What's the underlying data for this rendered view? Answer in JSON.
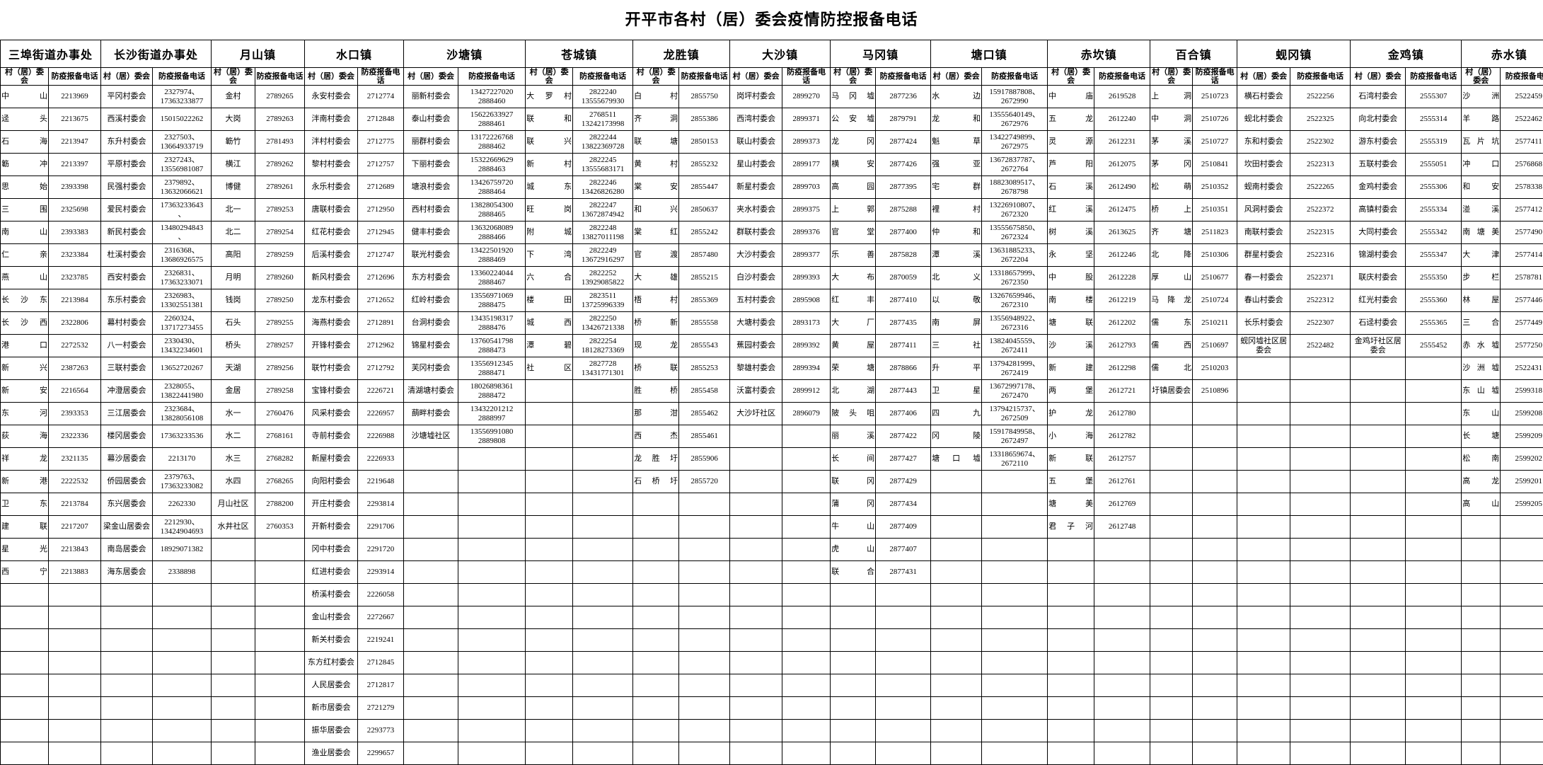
{
  "title": "开平市各村（居）委会疫情防控报备电话",
  "column_labels": {
    "name_label": "村（居）委会",
    "phone_label": "防疫报备电话"
  },
  "total_rows": 30,
  "groups": [
    {
      "name": "三埠街道办事处",
      "rows": [
        [
          "中山",
          "2213969"
        ],
        [
          "迳头",
          "2213675"
        ],
        [
          "石海",
          "2213947"
        ],
        [
          "簕冲",
          "2213397"
        ],
        [
          "思始",
          "2393398"
        ],
        [
          "三围",
          "2325698"
        ],
        [
          "南山",
          "2393383"
        ],
        [
          "仁亲",
          "2323384"
        ],
        [
          "燕山",
          "2323785"
        ],
        [
          "长沙东",
          "2213984"
        ],
        [
          "长沙西",
          "2322806"
        ],
        [
          "港口",
          "2272532"
        ],
        [
          "新兴",
          "2387263"
        ],
        [
          "新安",
          "2216564"
        ],
        [
          "东河",
          "2393353"
        ],
        [
          "荻海",
          "2322336"
        ],
        [
          "祥龙",
          "2321135"
        ],
        [
          "新港",
          "2222532"
        ],
        [
          "卫东",
          "2213784"
        ],
        [
          "建联",
          "2217207"
        ],
        [
          "星光",
          "2213843"
        ],
        [
          "西宁",
          "2213883"
        ]
      ]
    },
    {
      "name": "长沙街道办事处",
      "rows": [
        [
          "平冈村委会",
          "2327974、\n17363233877"
        ],
        [
          "西溪村委会",
          "15015022262"
        ],
        [
          "东升村委会",
          "2327503、\n13664933719"
        ],
        [
          "平原村委会",
          "2327243、\n13556981087"
        ],
        [
          "民强村委会",
          "2379892、\n13632066621"
        ],
        [
          "爱民村委会",
          "17363233643\n、"
        ],
        [
          "新民村委会",
          "13480294843\n、"
        ],
        [
          "杜溪村委会",
          "2316368、\n13686926575"
        ],
        [
          "西安村委会",
          "2326831、\n17363233071"
        ],
        [
          "东乐村委会",
          "2326983、\n13302551381"
        ],
        [
          "幕村村委会",
          "2260324、\n13717273455"
        ],
        [
          "八一村委会",
          "2330430、\n13432234601"
        ],
        [
          "三联村委会",
          "13652720267"
        ],
        [
          "冲澄居委会",
          "2328055、\n13822441980"
        ],
        [
          "三江居委会",
          "2323684、\n13828056108"
        ],
        [
          "楼冈居委会",
          "17363233536"
        ],
        [
          "幕沙居委会",
          "2213170"
        ],
        [
          "侨园居委会",
          "2379763、\n17363233082"
        ],
        [
          "东兴居委会",
          "2262330"
        ],
        [
          "梁金山居委会",
          "2212930、\n13424904693"
        ],
        [
          "南岛居委会",
          "18929071382"
        ],
        [
          "海东居委会",
          "2338898"
        ]
      ]
    },
    {
      "name": "月山镇",
      "rows": [
        [
          "金村",
          "2789265"
        ],
        [
          "大岗",
          "2789263"
        ],
        [
          "簕竹",
          "2781493"
        ],
        [
          "横江",
          "2789262"
        ],
        [
          "博健",
          "2789261"
        ],
        [
          "北一",
          "2789253"
        ],
        [
          "北二",
          "2789254"
        ],
        [
          "高阳",
          "2789259"
        ],
        [
          "月明",
          "2789260"
        ],
        [
          "钱岗",
          "2789250"
        ],
        [
          "石头",
          "2789255"
        ],
        [
          "桥头",
          "2789257"
        ],
        [
          "天湖",
          "2789256"
        ],
        [
          "金居",
          "2789258"
        ],
        [
          "水一",
          "2760476"
        ],
        [
          "水二",
          "2768161"
        ],
        [
          "水三",
          "2768282"
        ],
        [
          "水四",
          "2768265"
        ],
        [
          "月山社区",
          "2788200"
        ],
        [
          "水井社区",
          "2760353"
        ]
      ]
    },
    {
      "name": "水口镇",
      "rows": [
        [
          "永安村委会",
          "2712774"
        ],
        [
          "泮南村委会",
          "2712848"
        ],
        [
          "泮村村委会",
          "2712775"
        ],
        [
          "黎村村委会",
          "2712757"
        ],
        [
          "永乐村委会",
          "2712689"
        ],
        [
          "唐联村委会",
          "2712950"
        ],
        [
          "红花村委会",
          "2712945"
        ],
        [
          "后溪村委会",
          "2712747"
        ],
        [
          "新风村委会",
          "2712696"
        ],
        [
          "龙东村委会",
          "2712652"
        ],
        [
          "海燕村委会",
          "2712891"
        ],
        [
          "开锋村委会",
          "2712962"
        ],
        [
          "联竹村委会",
          "2712792"
        ],
        [
          "宝锋村委会",
          "2226721"
        ],
        [
          "风采村委会",
          "2226957"
        ],
        [
          "寺前村委会",
          "2226988"
        ],
        [
          "新屋村委会",
          "2226933"
        ],
        [
          "向阳村委会",
          "2219648"
        ],
        [
          "开庄村委会",
          "2293814"
        ],
        [
          "开新村委会",
          "2291706"
        ],
        [
          "冈中村委会",
          "2291720"
        ],
        [
          "红进村委会",
          "2293914"
        ],
        [
          "桥溪村委会",
          "2226058"
        ],
        [
          "金山村委会",
          "2272667"
        ],
        [
          "新关村委会",
          "2219241"
        ],
        [
          "东方红村委会",
          "2712845"
        ],
        [
          "人民居委会",
          "2712817"
        ],
        [
          "新市居委会",
          "2721279"
        ],
        [
          "振华居委会",
          "2293773"
        ],
        [
          "渔业居委会",
          "2299657"
        ]
      ]
    },
    {
      "name": "沙塘镇",
      "rows": [
        [
          "丽新村委会",
          "13427227020\n2888460"
        ],
        [
          "泰山村委会",
          "15622633927\n2888461"
        ],
        [
          "丽群村委会",
          "13172226768\n2888462"
        ],
        [
          "下丽村委会",
          "15322669629\n2888463"
        ],
        [
          "塘浪村委会",
          "13426759720\n2888464"
        ],
        [
          "西村村委会",
          "13828054300\n2888465"
        ],
        [
          "健丰村委会",
          "13632068089\n2888466"
        ],
        [
          "联光村委会",
          "13422501920\n2888469"
        ],
        [
          "东方村委会",
          "13360224044\n2888467"
        ],
        [
          "红岭村委会",
          "13556971069\n2888475"
        ],
        [
          "台洞村委会",
          "13435198317\n2888476"
        ],
        [
          "锦星村委会",
          "13760541798\n2888473"
        ],
        [
          "芙冈村委会",
          "13556912345\n2888471"
        ],
        [
          "清湖塘村委会",
          "18026898361\n2888472"
        ],
        [
          "蓢畔村委会",
          "13432201212\n2888997"
        ],
        [
          "沙塘墟社区",
          "13556991080\n2889808"
        ]
      ]
    },
    {
      "name": "苍城镇",
      "rows": [
        [
          "大罗村",
          "2822240\n13555679930"
        ],
        [
          "联和",
          "2768511\n13242173998"
        ],
        [
          "联兴",
          "2822244\n13822369728"
        ],
        [
          "新村",
          "2822245\n13555683171"
        ],
        [
          "城东",
          "2822246\n13426826280"
        ],
        [
          "旺岗",
          "2822247\n13672874942"
        ],
        [
          "附城",
          "2822248\n13827011198"
        ],
        [
          "下湾",
          "2822249\n13672916297"
        ],
        [
          "六合",
          "2822252\n13929085822"
        ],
        [
          "楼田",
          "2823511\n13725996339"
        ],
        [
          "城西",
          "2822250\n13426721338"
        ],
        [
          "潭碧",
          "2822254\n18128273369"
        ],
        [
          "社区",
          "2827728\n13431771301"
        ]
      ]
    },
    {
      "name": "龙胜镇",
      "rows": [
        [
          "白村",
          "2855750"
        ],
        [
          "齐洞",
          "2855386"
        ],
        [
          "联塘",
          "2850153"
        ],
        [
          "黄村",
          "2855232"
        ],
        [
          "棠安",
          "2855447"
        ],
        [
          "和兴",
          "2850637"
        ],
        [
          "棠红",
          "2855242"
        ],
        [
          "官渡",
          "2857480"
        ],
        [
          "大雄",
          "2855215"
        ],
        [
          "梧村",
          "2855369"
        ],
        [
          "桥新",
          "2855558"
        ],
        [
          "现龙",
          "2855543"
        ],
        [
          "桥联",
          "2855253"
        ],
        [
          "胜桥",
          "2855458"
        ],
        [
          "那泔",
          "2855462"
        ],
        [
          "西杰",
          "2855461"
        ],
        [
          "龙胜圩",
          "2855906"
        ],
        [
          "石桥圩",
          "2855720"
        ]
      ]
    },
    {
      "name": "大沙镇",
      "rows": [
        [
          "岗坪村委会",
          "2899270"
        ],
        [
          "西湾村委会",
          "2899371"
        ],
        [
          "联山村委会",
          "2899373"
        ],
        [
          "星山村委会",
          "2899177"
        ],
        [
          "新星村委会",
          "2899703"
        ],
        [
          "夹水村委会",
          "2899375"
        ],
        [
          "群联村委会",
          "2899376"
        ],
        [
          "大沙村委会",
          "2899377"
        ],
        [
          "白沙村委会",
          "2899393"
        ],
        [
          "五村村委会",
          "2895908"
        ],
        [
          "大塘村委会",
          "2893173"
        ],
        [
          "蕉园村委会",
          "2899392"
        ],
        [
          "黎雄村委会",
          "2899394"
        ],
        [
          "沃富村委会",
          "2899912"
        ],
        [
          "大沙圩社区",
          "2896079"
        ]
      ]
    },
    {
      "name": "马冈镇",
      "rows": [
        [
          "马冈墟",
          "2877236"
        ],
        [
          "公安墟",
          "2879791"
        ],
        [
          "龙冈",
          "2877424"
        ],
        [
          "横安",
          "2877426"
        ],
        [
          "高园",
          "2877395"
        ],
        [
          "上郭",
          "2875288"
        ],
        [
          "官堂",
          "2877400"
        ],
        [
          "乐善",
          "2875828"
        ],
        [
          "大布",
          "2870059"
        ],
        [
          "红丰",
          "2877410"
        ],
        [
          "大厂",
          "2877435"
        ],
        [
          "黄屋",
          "2877411"
        ],
        [
          "荣塘",
          "2878866"
        ],
        [
          "北湖",
          "2877443"
        ],
        [
          "陂头咀",
          "2877406"
        ],
        [
          "丽溪",
          "2877422"
        ],
        [
          "长间",
          "2877427"
        ],
        [
          "联冈",
          "2877429"
        ],
        [
          "蒲冈",
          "2877434"
        ],
        [
          "牛山",
          "2877409"
        ],
        [
          "虎山",
          "2877407"
        ],
        [
          "联合",
          "2877431"
        ]
      ]
    },
    {
      "name": "塘口镇",
      "rows": [
        [
          "水边",
          "15917887808、\n2672990"
        ],
        [
          "龙和",
          "13555640149、\n2672976"
        ],
        [
          "魁草",
          "13422749899、\n2672975"
        ],
        [
          "强亚",
          "13672837787、\n2672764"
        ],
        [
          "宅群",
          "18823089517、\n2678798"
        ],
        [
          "裡村",
          "13226910807、\n2672320"
        ],
        [
          "仲和",
          "13555675850、\n2672324"
        ],
        [
          "潭溪",
          "13631885233、\n2672204"
        ],
        [
          "北义",
          "13318657999、\n2672350"
        ],
        [
          "以敬",
          "13267659946、\n2672310"
        ],
        [
          "南屏",
          "13556948922、\n2672316"
        ],
        [
          "三社",
          "13824045559、\n2672411"
        ],
        [
          "升平",
          "13794281999、\n2672419"
        ],
        [
          "卫星",
          "13672997178、\n2672470"
        ],
        [
          "四九",
          "13794215737、\n2672509"
        ],
        [
          "冈陵",
          "15917849958、\n2672497"
        ],
        [
          "塘口墟",
          "13318659674、\n2672110"
        ]
      ]
    },
    {
      "name": "赤坎镇",
      "rows": [
        [
          "中庙",
          "2619528"
        ],
        [
          "五龙",
          "2612240"
        ],
        [
          "灵源",
          "2612231"
        ],
        [
          "芦阳",
          "2612075"
        ],
        [
          "石溪",
          "2612490"
        ],
        [
          "红溪",
          "2612475"
        ],
        [
          "树溪",
          "2613625"
        ],
        [
          "永坚",
          "2612246"
        ],
        [
          "中股",
          "2612228"
        ],
        [
          "南楼",
          "2612219"
        ],
        [
          "塘联",
          "2612202"
        ],
        [
          "沙溪",
          "2612793"
        ],
        [
          "新建",
          "2612298"
        ],
        [
          "两堡",
          "2612721"
        ],
        [
          "护龙",
          "2612780"
        ],
        [
          "小海",
          "2612782"
        ],
        [
          "新联",
          "2612757"
        ],
        [
          "五堡",
          "2612761"
        ],
        [
          "塘美",
          "2612769"
        ],
        [
          "君子河",
          "2612748"
        ]
      ]
    },
    {
      "name": "百合镇",
      "rows": [
        [
          "上洞",
          "2510723"
        ],
        [
          "中洞",
          "2510726"
        ],
        [
          "茅溪",
          "2510727"
        ],
        [
          "茅冈",
          "2510841"
        ],
        [
          "松萌",
          "2510352"
        ],
        [
          "桥上",
          "2510351"
        ],
        [
          "齐塘",
          "2511823"
        ],
        [
          "北降",
          "2510306"
        ],
        [
          "厚山",
          "2510677"
        ],
        [
          "马降龙",
          "2510724"
        ],
        [
          "儒东",
          "2510211"
        ],
        [
          "儒西",
          "2510697"
        ],
        [
          "儒北",
          "2510203"
        ],
        [
          "圩镇居委会",
          "2510896"
        ]
      ]
    },
    {
      "name": "蚬冈镇",
      "rows": [
        [
          "横石村委会",
          "2522256"
        ],
        [
          "蚬北村委会",
          "2522325"
        ],
        [
          "东和村委会",
          "2522302"
        ],
        [
          "坎田村委会",
          "2522313"
        ],
        [
          "蚬南村委会",
          "2522265"
        ],
        [
          "风洞村委会",
          "2522372"
        ],
        [
          "南联村委会",
          "2522315"
        ],
        [
          "群星村委会",
          "2522316"
        ],
        [
          "春一村委会",
          "2522371"
        ],
        [
          "春山村委会",
          "2522312"
        ],
        [
          "长乐村委会",
          "2522307"
        ],
        [
          "蚬冈墟社区居委会",
          "2522482"
        ]
      ]
    },
    {
      "name": "金鸡镇",
      "rows": [
        [
          "石湾村委会",
          "2555307"
        ],
        [
          "向北村委会",
          "2555314"
        ],
        [
          "游东村委会",
          "2555319"
        ],
        [
          "五联村委会",
          "2555051"
        ],
        [
          "金鸡村委会",
          "2555306"
        ],
        [
          "高镇村委会",
          "2555334"
        ],
        [
          "大同村委会",
          "2555342"
        ],
        [
          "锦湖村委会",
          "2555347"
        ],
        [
          "联庆村委会",
          "2555350"
        ],
        [
          "红光村委会",
          "2555360"
        ],
        [
          "石迳村委会",
          "2555365"
        ],
        [
          "金鸡圩社区居委会",
          "2555452"
        ]
      ]
    },
    {
      "name": "赤水镇",
      "rows": [
        [
          "沙洲",
          "2522459"
        ],
        [
          "羊路",
          "2522462"
        ],
        [
          "瓦片坑",
          "2577411"
        ],
        [
          "冲口",
          "2576868"
        ],
        [
          "和安",
          "2578338"
        ],
        [
          "湴溪",
          "2577412"
        ],
        [
          "南塘美",
          "2577490"
        ],
        [
          "大津",
          "2577414"
        ],
        [
          "步栏",
          "2578781"
        ],
        [
          "林屋",
          "2577446"
        ],
        [
          "三合",
          "2577449"
        ],
        [
          "赤水墟",
          "2577250"
        ],
        [
          "沙洲墟",
          "2522431"
        ],
        [
          "东山墟",
          "2599318"
        ],
        [
          "东山",
          "2599208"
        ],
        [
          "长塘",
          "2599209"
        ],
        [
          "松南",
          "2599202"
        ],
        [
          "高龙",
          "2599201"
        ],
        [
          "高山",
          "2599205"
        ]
      ]
    }
  ]
}
